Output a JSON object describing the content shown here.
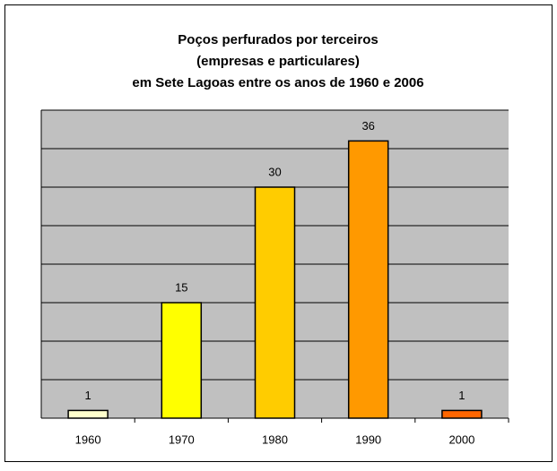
{
  "chart_data": {
    "type": "bar",
    "title": [
      "Poços perfurados por terceiros",
      "(empresas e particulares)",
      "em Sete Lagoas entre os anos de 1960 e 2006"
    ],
    "categories": [
      "1960",
      "1970",
      "1980",
      "1990",
      "2000"
    ],
    "values": [
      1,
      15,
      30,
      36,
      1
    ],
    "colors": [
      "#ffffcc",
      "#ffff00",
      "#ffcc00",
      "#ff9900",
      "#ff6600"
    ],
    "ylim": [
      0,
      40
    ],
    "yticks": [
      0,
      5,
      10,
      15,
      20,
      25,
      30,
      35,
      40
    ],
    "grid": true
  }
}
